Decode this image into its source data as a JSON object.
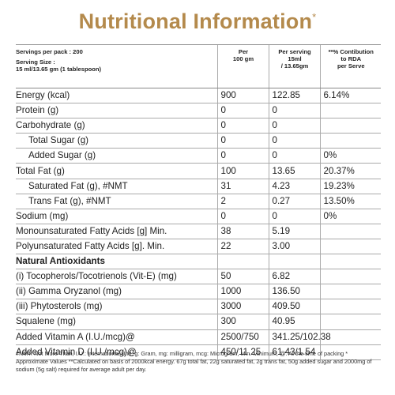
{
  "header": {
    "title": "Nutritional Information",
    "title_mark": "*"
  },
  "table": {
    "head": [
      [
        "Servings per pack : 200",
        "Serving Size :",
        "15 ml/13.65 gm (1 tablespoon)"
      ],
      [
        "Per",
        "100 gm"
      ],
      [
        "Per serving",
        "15ml",
        "/ 13.65gm"
      ],
      [
        "**% Contibution",
        "to RDA",
        "per Serve"
      ]
    ],
    "rows": [
      {
        "label": "Energy (kcal)",
        "per100": "900",
        "serving": "122.85",
        "rda": "6.14%"
      },
      {
        "label": "Protein (g)",
        "per100": "0",
        "serving": "0"
      },
      {
        "label": "Carbohydrate (g)",
        "per100": "0",
        "serving": "0"
      },
      {
        "label": "Total Sugar (g)",
        "per100": "0",
        "serving": "0",
        "sub": true
      },
      {
        "label": "Added Sugar (g)",
        "per100": "0",
        "serving": "0",
        "rda": "0%",
        "sub": true
      },
      {
        "label": "Total Fat (g)",
        "per100": "100",
        "serving": "13.65",
        "rda": "20.37%"
      },
      {
        "label": "Saturated Fat (g), #NMT",
        "per100": "31",
        "serving": "4.23",
        "rda": "19.23%",
        "sub": true
      },
      {
        "label": "Trans Fat (g), #NMT",
        "per100": "2",
        "serving": "0.27",
        "rda": "13.50%",
        "sub": true
      },
      {
        "label": "Sodium (mg)",
        "per100": "0",
        "serving": "0",
        "rda": "0%"
      },
      {
        "label": "Monounsaturated Fatty Acids [g] Min.",
        "per100": "38",
        "serving": "5.19"
      },
      {
        "label": "Polyunsaturated Fatty Acids [g]. Min.",
        "per100": "22",
        "serving": "3.00"
      },
      {
        "label": "Natural Antioxidants",
        "section": true
      },
      {
        "label": "(i) Tocopherols/Tocotrienols (Vit-E) (mg)",
        "per100": "50",
        "serving": "6.82"
      },
      {
        "label": "(ii) Gamma Oryzanol (mg)",
        "per100": "1000",
        "serving": "136.50"
      },
      {
        "label": "(iii) Phytosterols (mg)",
        "per100": "3000",
        "serving": "409.50"
      },
      {
        "label": "Squalene (mg)",
        "per100": "300",
        "serving": "40.95"
      },
      {
        "label": "Added Vitamin A (I.U./mcg)@",
        "per100": "2500/750",
        "serving": "341.25/102.38"
      },
      {
        "label": "Added Vitamin D (I.U./mcg)@",
        "per100": "450/11.25",
        "serving": "61.43/1.54"
      }
    ]
  },
  "footnote": "#NMT: Not More Than, I.U.: International Unit, g: Gram, mg: milligram, mcg: Microgram, Min. Minimum, @: At the time of packing * Approximate Values **Calculated on basis of 2000kcal energy. 67g total fat, 22g saturated fat, 2g trans fat, 50g added sugar and 2000mg of sodium (5g salt) required for average adult per day."
}
